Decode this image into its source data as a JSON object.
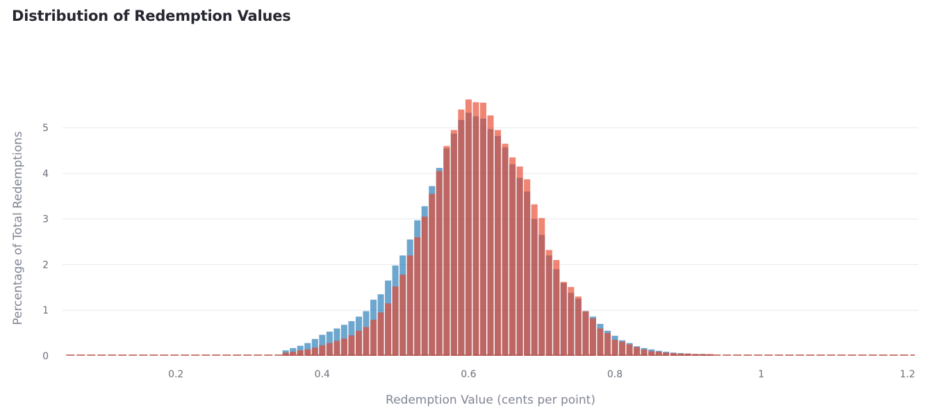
{
  "chart_data": {
    "type": "bar",
    "title": "Distribution of Redemption Values",
    "xlabel": "Redemption Value (cents per point)",
    "ylabel": "Percentage of Total Redemptions",
    "xlim": [
      0.045,
      1.215
    ],
    "ylim": [
      0,
      5.9
    ],
    "x_ticks": [
      0.2,
      0.4,
      0.6,
      0.8,
      1,
      1.2
    ],
    "y_ticks": [
      0,
      1,
      2,
      3,
      4,
      5
    ],
    "grid": true,
    "legend": "none",
    "bin_width": 0.01,
    "series": [
      {
        "color": "#1f77b4",
        "opacity": 0.65,
        "x": [
          0.35,
          0.36,
          0.37,
          0.38,
          0.39,
          0.4,
          0.41,
          0.42,
          0.43,
          0.44,
          0.45,
          0.46,
          0.47,
          0.48,
          0.49,
          0.5,
          0.51,
          0.52,
          0.53,
          0.54,
          0.55,
          0.56,
          0.57,
          0.58,
          0.59,
          0.6,
          0.61,
          0.62,
          0.63,
          0.64,
          0.65,
          0.66,
          0.67,
          0.68,
          0.69,
          0.7,
          0.71,
          0.72,
          0.73,
          0.74,
          0.75,
          0.76,
          0.77,
          0.78,
          0.79,
          0.8,
          0.81,
          0.82,
          0.83,
          0.84,
          0.85,
          0.86,
          0.87,
          0.88,
          0.89,
          0.9,
          0.91,
          0.92,
          0.93
        ],
        "values": [
          0.12,
          0.17,
          0.22,
          0.28,
          0.37,
          0.46,
          0.53,
          0.6,
          0.68,
          0.76,
          0.86,
          0.98,
          1.23,
          1.35,
          1.65,
          1.98,
          2.2,
          2.55,
          2.97,
          3.28,
          3.72,
          4.12,
          4.55,
          4.87,
          5.17,
          5.33,
          5.25,
          5.2,
          4.97,
          4.82,
          4.57,
          4.2,
          3.9,
          3.6,
          3.0,
          2.65,
          2.2,
          1.9,
          1.6,
          1.38,
          1.25,
          0.98,
          0.86,
          0.7,
          0.55,
          0.44,
          0.34,
          0.28,
          0.21,
          0.17,
          0.14,
          0.11,
          0.09,
          0.07,
          0.06,
          0.05,
          0.04,
          0.04,
          0.03
        ]
      },
      {
        "color": "#e8432a",
        "opacity": 0.65,
        "x": [
          0.35,
          0.36,
          0.37,
          0.38,
          0.39,
          0.4,
          0.41,
          0.42,
          0.43,
          0.44,
          0.45,
          0.46,
          0.47,
          0.48,
          0.49,
          0.5,
          0.51,
          0.52,
          0.53,
          0.54,
          0.55,
          0.56,
          0.57,
          0.58,
          0.59,
          0.6,
          0.61,
          0.62,
          0.63,
          0.64,
          0.65,
          0.66,
          0.67,
          0.68,
          0.69,
          0.7,
          0.71,
          0.72,
          0.73,
          0.74,
          0.75,
          0.76,
          0.77,
          0.78,
          0.79,
          0.8,
          0.81,
          0.82,
          0.83,
          0.84,
          0.85,
          0.86,
          0.87,
          0.88,
          0.89,
          0.9,
          0.91,
          0.92,
          0.93
        ],
        "values": [
          0.07,
          0.09,
          0.12,
          0.14,
          0.18,
          0.23,
          0.28,
          0.33,
          0.38,
          0.45,
          0.55,
          0.63,
          0.79,
          0.95,
          1.15,
          1.52,
          1.78,
          2.2,
          2.6,
          3.05,
          3.55,
          4.05,
          4.6,
          4.95,
          5.4,
          5.62,
          5.56,
          5.55,
          5.27,
          4.95,
          4.65,
          4.35,
          4.15,
          3.87,
          3.32,
          3.02,
          2.32,
          2.1,
          1.62,
          1.51,
          1.3,
          0.98,
          0.82,
          0.6,
          0.5,
          0.35,
          0.31,
          0.25,
          0.19,
          0.14,
          0.1,
          0.09,
          0.07,
          0.06,
          0.05,
          0.05,
          0.04,
          0.04,
          0.04
        ]
      }
    ]
  }
}
